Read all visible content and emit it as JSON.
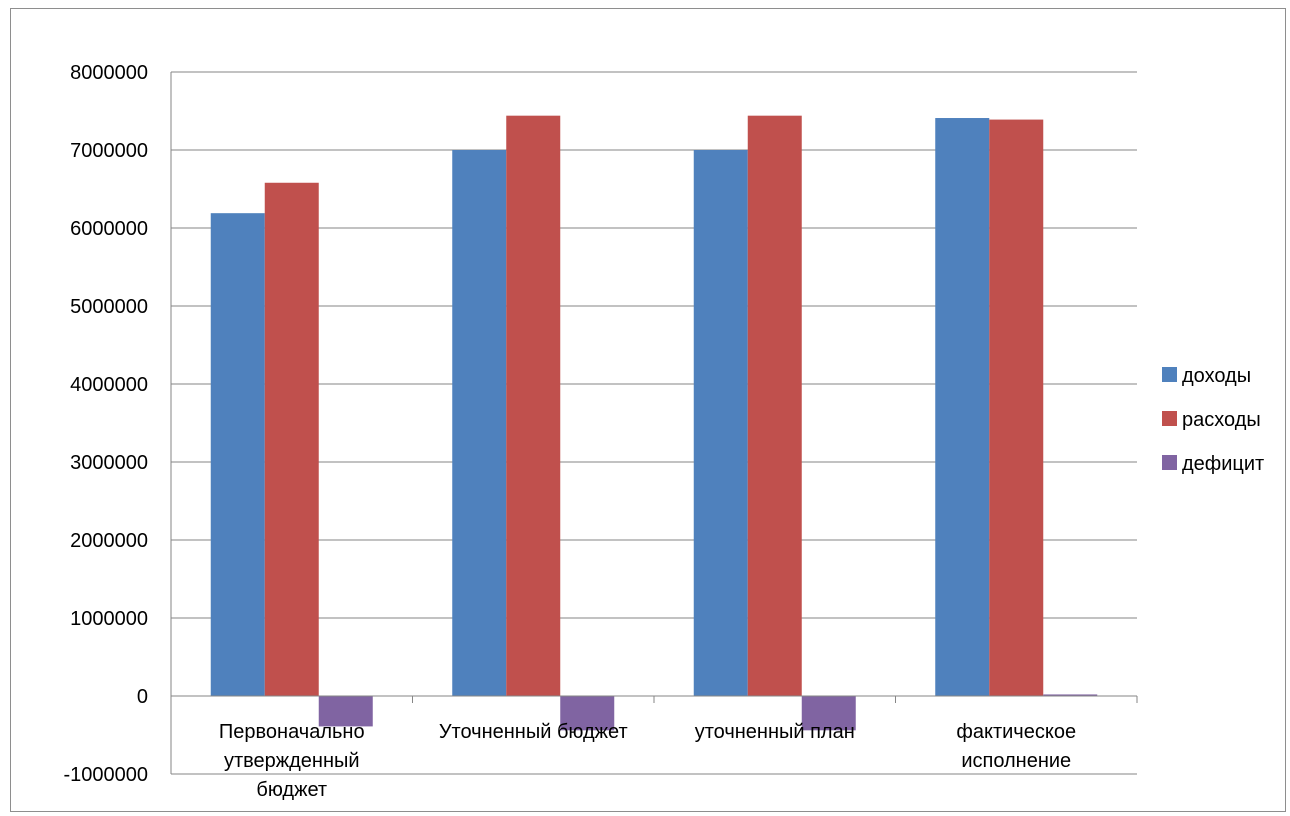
{
  "chart_data": {
    "type": "bar",
    "categories": [
      [
        "Первоначально",
        "утвержденный",
        "бюджет"
      ],
      [
        "Уточненный бюджет"
      ],
      [
        "уточненный план"
      ],
      [
        "фактическое",
        "исполнение"
      ]
    ],
    "series": [
      {
        "name": "доходы",
        "color": "#4F81BD",
        "values": [
          6190000,
          7000000,
          7000000,
          7410000
        ]
      },
      {
        "name": "расходы",
        "color": "#C0504D",
        "values": [
          6580000,
          7440000,
          7440000,
          7390000
        ]
      },
      {
        "name": "дефицит",
        "color": "#8064A2",
        "values": [
          -390000,
          -440000,
          -440000,
          20000
        ]
      }
    ],
    "y_ticks": [
      "8000000",
      "7000000",
      "6000000",
      "5000000",
      "4000000",
      "3000000",
      "2000000",
      "1000000",
      "0",
      "-1000000"
    ],
    "ylim": [
      -1000000,
      8000000
    ],
    "y_step": 1000000,
    "grid": true,
    "legend": "right",
    "title": "",
    "xlabel": "",
    "ylabel": ""
  }
}
